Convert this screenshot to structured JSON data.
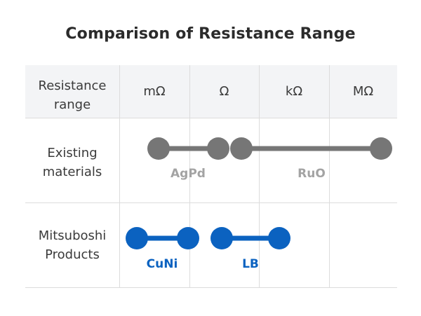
{
  "title": "Comparison of Resistance Range",
  "header": {
    "row_label": "Resistance\nrange",
    "columns": [
      "mΩ",
      "Ω",
      "kΩ",
      "MΩ"
    ]
  },
  "rows": [
    {
      "label": "Existing\nmaterials"
    },
    {
      "label": "Mitsuboshi\nProducts"
    }
  ],
  "colors": {
    "existing": "#767676",
    "existing_label": "#a3a3a3",
    "mitsuboshi": "#0b62c0",
    "mitsuboshi_label": "#0b62c0"
  },
  "chart_data": {
    "type": "range",
    "x_categories": [
      "mΩ",
      "Ω",
      "kΩ",
      "MΩ"
    ],
    "series": [
      {
        "row": "Existing materials",
        "name": "AgPd",
        "range": [
          "mΩ",
          "Ω"
        ]
      },
      {
        "row": "Existing materials",
        "name": "RuO",
        "range": [
          "Ω",
          "MΩ"
        ]
      },
      {
        "row": "Mitsuboshi Products",
        "name": "CuNi",
        "range": [
          "mΩ",
          "Ω"
        ]
      },
      {
        "row": "Mitsuboshi Products",
        "name": "LB",
        "range": [
          "Ω",
          "kΩ"
        ]
      }
    ]
  }
}
